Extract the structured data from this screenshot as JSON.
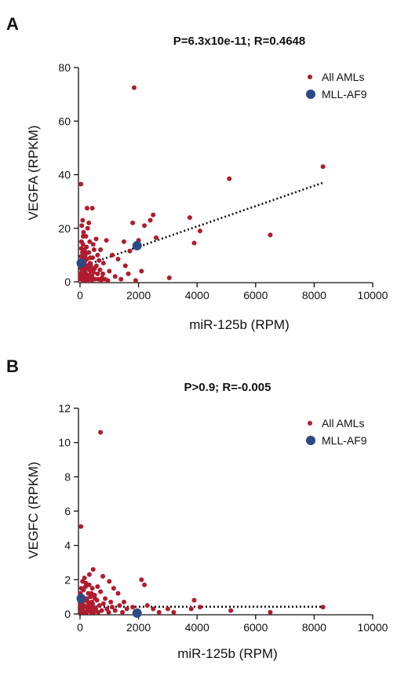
{
  "chart_data": [
    {
      "panel": "A",
      "type": "scatter",
      "title": "P=6.3x10e-11; R=0.4648",
      "xlabel": "miR-125b (RPM)",
      "ylabel": "VEGFA (RPKM)",
      "xlim": [
        0,
        10000
      ],
      "ylim": [
        0,
        80
      ],
      "xticks": [
        0,
        2000,
        4000,
        6000,
        8000,
        10000
      ],
      "yticks": [
        0,
        20,
        40,
        60,
        80
      ],
      "legend_position": "top-right",
      "series": [
        {
          "name": "All AMLs",
          "color": "#b01c2e",
          "points": [
            [
              30,
              36.5
            ],
            [
              60,
              21
            ],
            [
              90,
              23
            ],
            [
              120,
              18.5
            ],
            [
              150,
              12
            ],
            [
              170,
              8
            ],
            [
              200,
              17
            ],
            [
              240,
              27.5
            ],
            [
              260,
              20
            ],
            [
              300,
              22
            ],
            [
              330,
              15
            ],
            [
              350,
              9
            ],
            [
              380,
              2
            ],
            [
              420,
              27.5
            ],
            [
              450,
              14
            ],
            [
              500,
              5
            ],
            [
              550,
              16
            ],
            [
              600,
              10
            ],
            [
              650,
              8
            ],
            [
              700,
              12
            ],
            [
              750,
              1.5
            ],
            [
              800,
              7
            ],
            [
              900,
              15.5
            ],
            [
              1000,
              4
            ],
            [
              1100,
              10
            ],
            [
              1200,
              2
            ],
            [
              1300,
              8.5
            ],
            [
              1400,
              1
            ],
            [
              1500,
              15
            ],
            [
              1550,
              6
            ],
            [
              1650,
              3
            ],
            [
              1700,
              11.5
            ],
            [
              1800,
              22
            ],
            [
              1850,
              72.5
            ],
            [
              1900,
              0.5
            ],
            [
              2000,
              15.5
            ],
            [
              2100,
              4
            ],
            [
              2200,
              21
            ],
            [
              2400,
              23
            ],
            [
              2500,
              25
            ],
            [
              2600,
              16.5
            ],
            [
              3050,
              1.5
            ],
            [
              3750,
              24
            ],
            [
              3900,
              14.5
            ],
            [
              4100,
              19
            ],
            [
              5100,
              38.5
            ],
            [
              6500,
              17.5
            ],
            [
              8300,
              43
            ],
            [
              20,
              2
            ],
            [
              40,
              5
            ],
            [
              60,
              8
            ],
            [
              80,
              11
            ],
            [
              100,
              14
            ],
            [
              120,
              4
            ],
            [
              140,
              6.5
            ],
            [
              160,
              1
            ],
            [
              180,
              10
            ],
            [
              200,
              3
            ],
            [
              220,
              13
            ],
            [
              250,
              0.5
            ],
            [
              270,
              5.5
            ],
            [
              300,
              11
            ],
            [
              320,
              2.5
            ],
            [
              340,
              7
            ],
            [
              360,
              4
            ],
            [
              400,
              0.5
            ],
            [
              430,
              9
            ],
            [
              460,
              3.5
            ],
            [
              480,
              12
            ],
            [
              520,
              1
            ],
            [
              560,
              6
            ],
            [
              600,
              3
            ],
            [
              620,
              1
            ],
            [
              680,
              4.5
            ],
            [
              720,
              0.5
            ],
            [
              780,
              3
            ],
            [
              850,
              1
            ],
            [
              950,
              0.5
            ],
            [
              100,
              0.5
            ],
            [
              140,
              1.5
            ],
            [
              170,
              3.5
            ],
            [
              190,
              5
            ],
            [
              230,
              8.5
            ],
            [
              280,
              1.5
            ],
            [
              310,
              4.5
            ],
            [
              370,
              6
            ],
            [
              410,
              2
            ],
            [
              440,
              5
            ],
            [
              10,
              1
            ],
            [
              15,
              3
            ],
            [
              25,
              6
            ],
            [
              35,
              9.5
            ],
            [
              45,
              12.5
            ],
            [
              50,
              15
            ],
            [
              55,
              1
            ],
            [
              65,
              4
            ],
            [
              75,
              2.5
            ],
            [
              85,
              7
            ],
            [
              95,
              9
            ],
            [
              105,
              17
            ],
            [
              115,
              2
            ],
            [
              125,
              12
            ],
            [
              135,
              0.5
            ],
            [
              145,
              5
            ],
            [
              160,
              7.5
            ],
            [
              175,
              11
            ],
            [
              185,
              2
            ],
            [
              210,
              6
            ]
          ]
        },
        {
          "name": "MLL-AF9",
          "color": "#2b4a85",
          "points": [
            [
              40,
              7
            ],
            [
              1950,
              13.5
            ]
          ]
        }
      ],
      "trendline": {
        "x": [
          0,
          8300
        ],
        "y": [
          5.5,
          37
        ]
      }
    },
    {
      "panel": "B",
      "type": "scatter",
      "title": "P>0.9; R=-0.005",
      "xlabel": "miR-125b (RPM)",
      "ylabel": "VEGFC (RPKM)",
      "xlim": [
        0,
        10000
      ],
      "ylim": [
        0,
        12
      ],
      "xticks": [
        0,
        2000,
        4000,
        6000,
        8000,
        10000
      ],
      "yticks": [
        0,
        2,
        4,
        6,
        8,
        10,
        12
      ],
      "legend_position": "top-right",
      "series": [
        {
          "name": "All AMLs",
          "color": "#b01c2e",
          "points": [
            [
              30,
              5.1
            ],
            [
              700,
              10.6
            ],
            [
              450,
              2.6
            ],
            [
              600,
              1.6
            ],
            [
              780,
              2.2
            ],
            [
              1000,
              1.9
            ],
            [
              1150,
              1.5
            ],
            [
              1300,
              1.2
            ],
            [
              1500,
              0.7
            ],
            [
              1800,
              0.4
            ],
            [
              2100,
              2
            ],
            [
              2200,
              1.7
            ],
            [
              2300,
              0.5
            ],
            [
              2500,
              0.3
            ],
            [
              2700,
              0.1
            ],
            [
              3000,
              0.3
            ],
            [
              3200,
              0.1
            ],
            [
              3800,
              0.3
            ],
            [
              3900,
              0.8
            ],
            [
              4100,
              0.4
            ],
            [
              5150,
              0.2
            ],
            [
              6500,
              0.1
            ],
            [
              8300,
              0.4
            ],
            [
              20,
              0.1
            ],
            [
              40,
              0.3
            ],
            [
              60,
              0.6
            ],
            [
              80,
              1
            ],
            [
              100,
              0.2
            ],
            [
              120,
              1.4
            ],
            [
              140,
              0.5
            ],
            [
              160,
              0.8
            ],
            [
              180,
              0.1
            ],
            [
              200,
              1.8
            ],
            [
              220,
              0.4
            ],
            [
              240,
              0.9
            ],
            [
              260,
              0.2
            ],
            [
              280,
              1.2
            ],
            [
              300,
              0.6
            ],
            [
              320,
              2.3
            ],
            [
              340,
              0.3
            ],
            [
              360,
              1
            ],
            [
              380,
              0.1
            ],
            [
              400,
              0.7
            ],
            [
              420,
              1.5
            ],
            [
              440,
              0.2
            ],
            [
              460,
              0.4
            ],
            [
              500,
              1.1
            ],
            [
              540,
              0.3
            ],
            [
              580,
              0.8
            ],
            [
              620,
              0.1
            ],
            [
              660,
              0.5
            ],
            [
              700,
              1.3
            ],
            [
              740,
              0.2
            ],
            [
              800,
              0.6
            ],
            [
              860,
              0.9
            ],
            [
              920,
              0.3
            ],
            [
              980,
              0.1
            ],
            [
              1050,
              0.7
            ],
            [
              1100,
              0.4
            ],
            [
              1200,
              0.2
            ],
            [
              1350,
              0.5
            ],
            [
              1450,
              0.1
            ],
            [
              1600,
              0.3
            ],
            [
              150,
              2.1
            ],
            [
              190,
              1.6
            ],
            [
              230,
              0.1
            ],
            [
              270,
              0.7
            ],
            [
              310,
              1.7
            ],
            [
              350,
              0.4
            ],
            [
              390,
              1.2
            ],
            [
              430,
              0.6
            ],
            [
              470,
              0.1
            ],
            [
              510,
              0.9
            ],
            [
              10,
              0.5
            ],
            [
              15,
              1.2
            ],
            [
              25,
              0.2
            ],
            [
              35,
              0.8
            ],
            [
              45,
              1.5
            ],
            [
              55,
              0.3
            ],
            [
              65,
              0.7
            ],
            [
              75,
              0.1
            ],
            [
              85,
              1.9
            ],
            [
              95,
              0.4
            ]
          ]
        },
        {
          "name": "MLL-AF9",
          "color": "#2b4a85",
          "points": [
            [
              40,
              0.9
            ],
            [
              1950,
              0.05
            ]
          ]
        }
      ],
      "trendline": {
        "x": [
          0,
          8300
        ],
        "y": [
          0.42,
          0.42
        ]
      }
    }
  ]
}
